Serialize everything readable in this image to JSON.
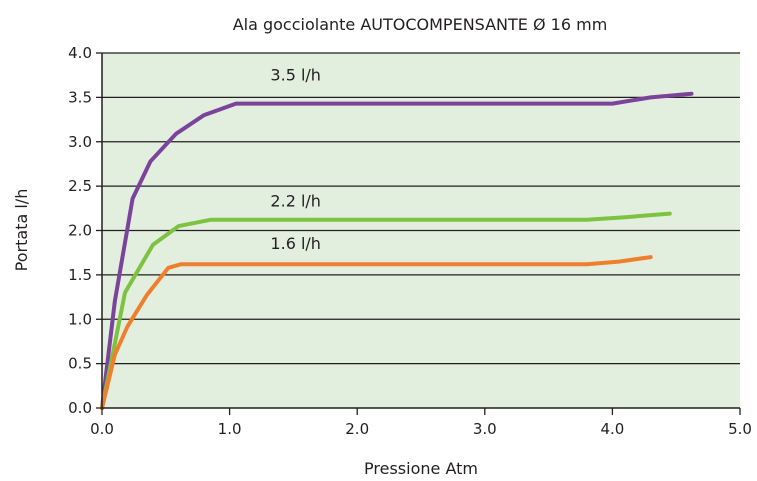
{
  "chart_data": {
    "type": "line",
    "title": "Ala gocciolante AUTOCOMPENSANTE Ø 16 mm",
    "xlabel": "Pressione Atm",
    "ylabel": "Portata l/h",
    "xlim": [
      0,
      5
    ],
    "ylim": [
      0,
      4
    ],
    "x_ticks": [
      "0.0",
      "1.0",
      "2.0",
      "3.0",
      "4.0",
      "5.0"
    ],
    "y_ticks": [
      "0.0",
      "0.5",
      "1.0",
      "1.5",
      "2.0",
      "2.5",
      "3.0",
      "3.5",
      "4.0"
    ],
    "grid": "horizontal",
    "background_color": "#e2efdf",
    "series": [
      {
        "name": "3.5 l/h",
        "color": "#7b439a",
        "points": [
          [
            0.0,
            0.0
          ],
          [
            0.1,
            1.2
          ],
          [
            0.24,
            2.36
          ],
          [
            0.38,
            2.78
          ],
          [
            0.58,
            3.09
          ],
          [
            0.8,
            3.3
          ],
          [
            1.05,
            3.43
          ],
          [
            2.0,
            3.43
          ],
          [
            3.0,
            3.43
          ],
          [
            4.0,
            3.43
          ],
          [
            4.3,
            3.5
          ],
          [
            4.62,
            3.54
          ]
        ]
      },
      {
        "name": "2.2 l/h",
        "color": "#7ec242",
        "points": [
          [
            0.0,
            0.0
          ],
          [
            0.18,
            1.3
          ],
          [
            0.4,
            1.84
          ],
          [
            0.6,
            2.05
          ],
          [
            0.85,
            2.12
          ],
          [
            2.0,
            2.12
          ],
          [
            3.0,
            2.12
          ],
          [
            3.8,
            2.12
          ],
          [
            4.1,
            2.15
          ],
          [
            4.45,
            2.19
          ]
        ]
      },
      {
        "name": "1.6 l/h",
        "color": "#f07f2d",
        "points": [
          [
            0.0,
            0.0
          ],
          [
            0.1,
            0.6
          ],
          [
            0.2,
            0.92
          ],
          [
            0.35,
            1.27
          ],
          [
            0.52,
            1.58
          ],
          [
            0.62,
            1.62
          ],
          [
            1.0,
            1.62
          ],
          [
            2.0,
            1.62
          ],
          [
            3.0,
            1.62
          ],
          [
            3.8,
            1.62
          ],
          [
            4.05,
            1.65
          ],
          [
            4.3,
            1.7
          ]
        ]
      }
    ]
  }
}
